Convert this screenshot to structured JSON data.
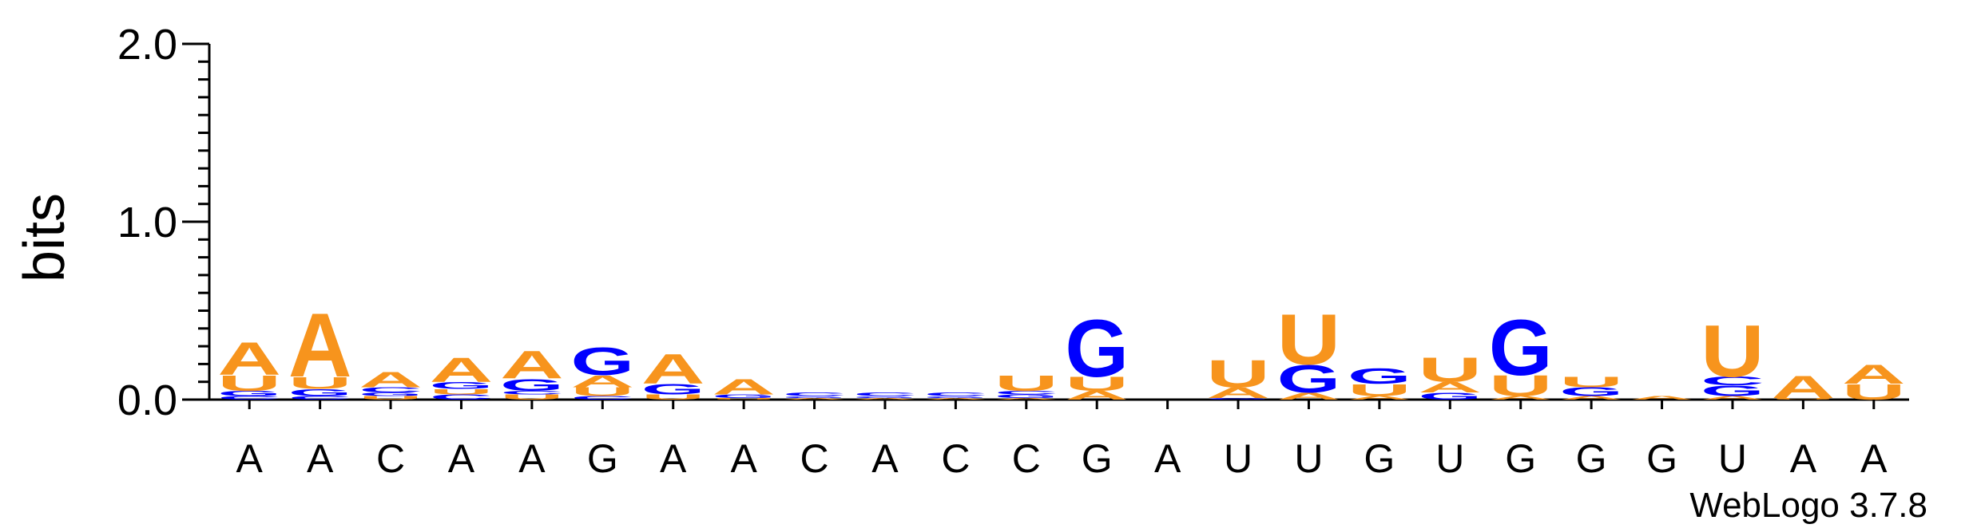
{
  "chart_data": {
    "type": "sequence-logo",
    "ylabel": "bits",
    "ylim": [
      0,
      2.0
    ],
    "yticks": [
      "0.0",
      "1.0",
      "2.0"
    ],
    "xlabels": [
      "A",
      "A",
      "C",
      "A",
      "A",
      "G",
      "A",
      "A",
      "C",
      "A",
      "C",
      "C",
      "G",
      "A",
      "U",
      "U",
      "G",
      "U",
      "G",
      "G",
      "G",
      "U",
      "A",
      "A"
    ],
    "colors": {
      "A": "#f7941d",
      "U": "#f7941d",
      "G": "#0000ff",
      "C": "#0000ff"
    },
    "stacks": [
      [
        {
          "l": "C",
          "h": 0.02
        },
        {
          "l": "G",
          "h": 0.03
        },
        {
          "l": "U",
          "h": 0.09
        },
        {
          "l": "A",
          "h": 0.19
        }
      ],
      [
        {
          "l": "C",
          "h": 0.02
        },
        {
          "l": "G",
          "h": 0.04
        },
        {
          "l": "U",
          "h": 0.07
        },
        {
          "l": "A",
          "h": 0.37
        }
      ],
      [
        {
          "l": "U",
          "h": 0.02
        },
        {
          "l": "G",
          "h": 0.02
        },
        {
          "l": "C",
          "h": 0.03
        },
        {
          "l": "A",
          "h": 0.09
        }
      ],
      [
        {
          "l": "C",
          "h": 0.03
        },
        {
          "l": "U",
          "h": 0.03
        },
        {
          "l": "G",
          "h": 0.04
        },
        {
          "l": "A",
          "h": 0.14
        }
      ],
      [
        {
          "l": "U",
          "h": 0.03
        },
        {
          "l": "C",
          "h": 0.02
        },
        {
          "l": "G",
          "h": 0.07
        },
        {
          "l": "A",
          "h": 0.16
        }
      ],
      [
        {
          "l": "C",
          "h": 0.02
        },
        {
          "l": "U",
          "h": 0.05
        },
        {
          "l": "A",
          "h": 0.07
        },
        {
          "l": "G",
          "h": 0.16
        }
      ],
      [
        {
          "l": "U",
          "h": 0.03
        },
        {
          "l": "G",
          "h": 0.06
        },
        {
          "l": "A",
          "h": 0.17
        }
      ],
      [
        {
          "l": "U",
          "h": 0.01
        },
        {
          "l": "G",
          "h": 0.02
        },
        {
          "l": "A",
          "h": 0.09
        }
      ],
      [
        {
          "l": "A",
          "h": 0.01
        },
        {
          "l": "G",
          "h": 0.01
        },
        {
          "l": "C",
          "h": 0.02
        }
      ],
      [
        {
          "l": "A",
          "h": 0.01
        },
        {
          "l": "G",
          "h": 0.01
        },
        {
          "l": "C",
          "h": 0.02
        }
      ],
      [
        {
          "l": "A",
          "h": 0.01
        },
        {
          "l": "G",
          "h": 0.01
        },
        {
          "l": "C",
          "h": 0.02
        }
      ],
      [
        {
          "l": "A",
          "h": 0.01
        },
        {
          "l": "G",
          "h": 0.02
        },
        {
          "l": "C",
          "h": 0.02
        },
        {
          "l": "U",
          "h": 0.09
        }
      ],
      [
        {
          "l": "A",
          "h": 0.05
        },
        {
          "l": "U",
          "h": 0.08
        },
        {
          "l": "G",
          "h": 0.33
        }
      ],
      [],
      [
        {
          "l": "G",
          "h": 0.01
        },
        {
          "l": "A",
          "h": 0.06
        },
        {
          "l": "U",
          "h": 0.16
        }
      ],
      [
        {
          "l": "A",
          "h": 0.04
        },
        {
          "l": "G",
          "h": 0.16
        },
        {
          "l": "U",
          "h": 0.29
        }
      ],
      [
        {
          "l": "A",
          "h": 0.02
        },
        {
          "l": "U",
          "h": 0.07
        },
        {
          "l": "G",
          "h": 0.09
        }
      ],
      [
        {
          "l": "G",
          "h": 0.04
        },
        {
          "l": "A",
          "h": 0.06
        },
        {
          "l": "U",
          "h": 0.14
        }
      ],
      [
        {
          "l": "A",
          "h": 0.02
        },
        {
          "l": "U",
          "h": 0.12
        },
        {
          "l": "G",
          "h": 0.32
        }
      ],
      [
        {
          "l": "A",
          "h": 0.02
        },
        {
          "l": "G",
          "h": 0.05
        },
        {
          "l": "U",
          "h": 0.06
        }
      ],
      [
        {
          "l": "A",
          "h": 0.02
        }
      ],
      [
        {
          "l": "A",
          "h": 0.02
        },
        {
          "l": "G",
          "h": 0.06
        },
        {
          "l": "C",
          "h": 0.05
        },
        {
          "l": "U",
          "h": 0.3
        }
      ],
      [
        {
          "l": "U",
          "h": 0.01
        },
        {
          "l": "A",
          "h": 0.13
        }
      ],
      [
        {
          "l": "U",
          "h": 0.09
        },
        {
          "l": "A",
          "h": 0.11
        }
      ]
    ]
  },
  "credit": "WebLogo 3.7.8"
}
